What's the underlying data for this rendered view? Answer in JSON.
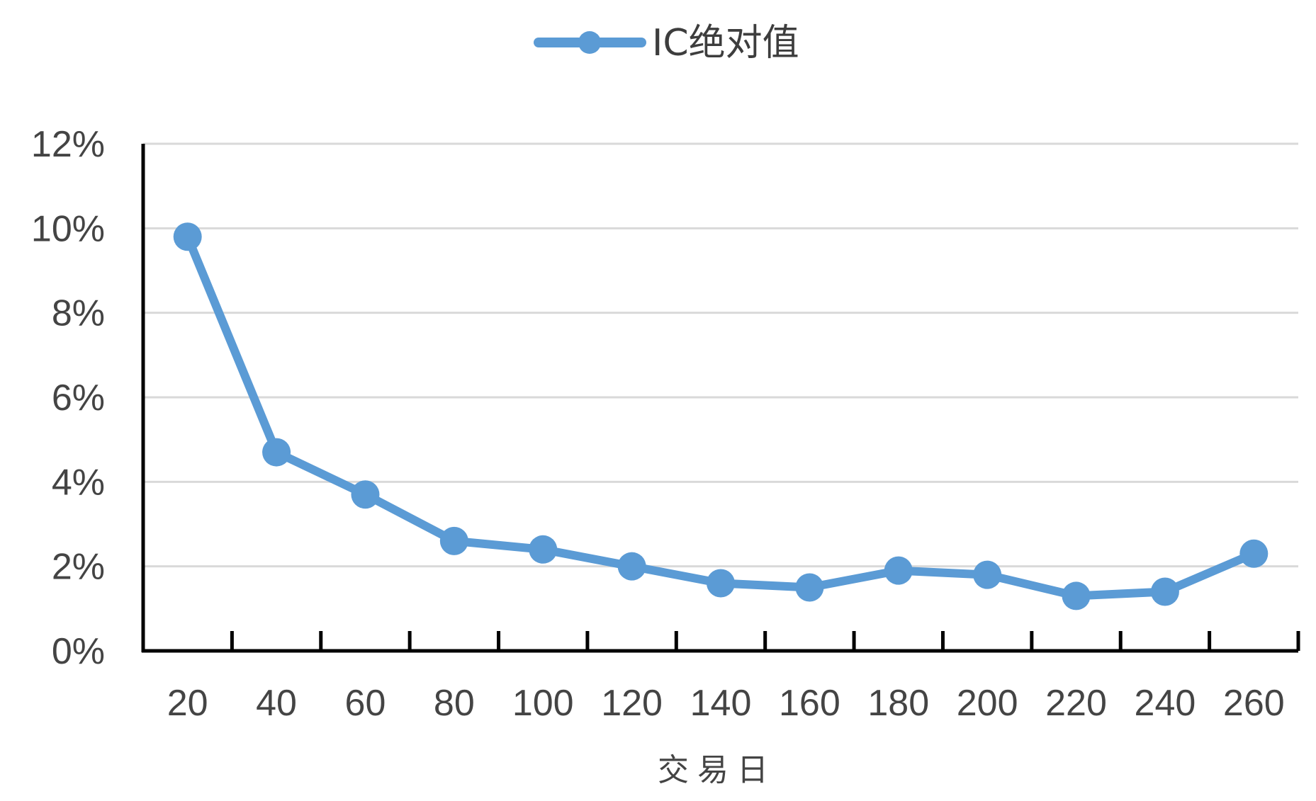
{
  "chart_data": {
    "type": "line",
    "title": "",
    "xlabel": "交易日",
    "ylabel": "",
    "categories": [
      "20",
      "40",
      "60",
      "80",
      "100",
      "120",
      "140",
      "160",
      "180",
      "200",
      "220",
      "240",
      "260"
    ],
    "yticks": [
      "0%",
      "2%",
      "4%",
      "6%",
      "8%",
      "10%",
      "12%"
    ],
    "ylim": [
      0,
      12
    ],
    "grid": true,
    "legend_position": "top",
    "series": [
      {
        "name": "IC绝对值",
        "color": "#5b9bd5",
        "values": [
          9.8,
          4.7,
          3.7,
          2.6,
          2.4,
          2.0,
          1.6,
          1.5,
          1.9,
          1.8,
          1.3,
          1.4,
          2.3
        ]
      }
    ]
  }
}
